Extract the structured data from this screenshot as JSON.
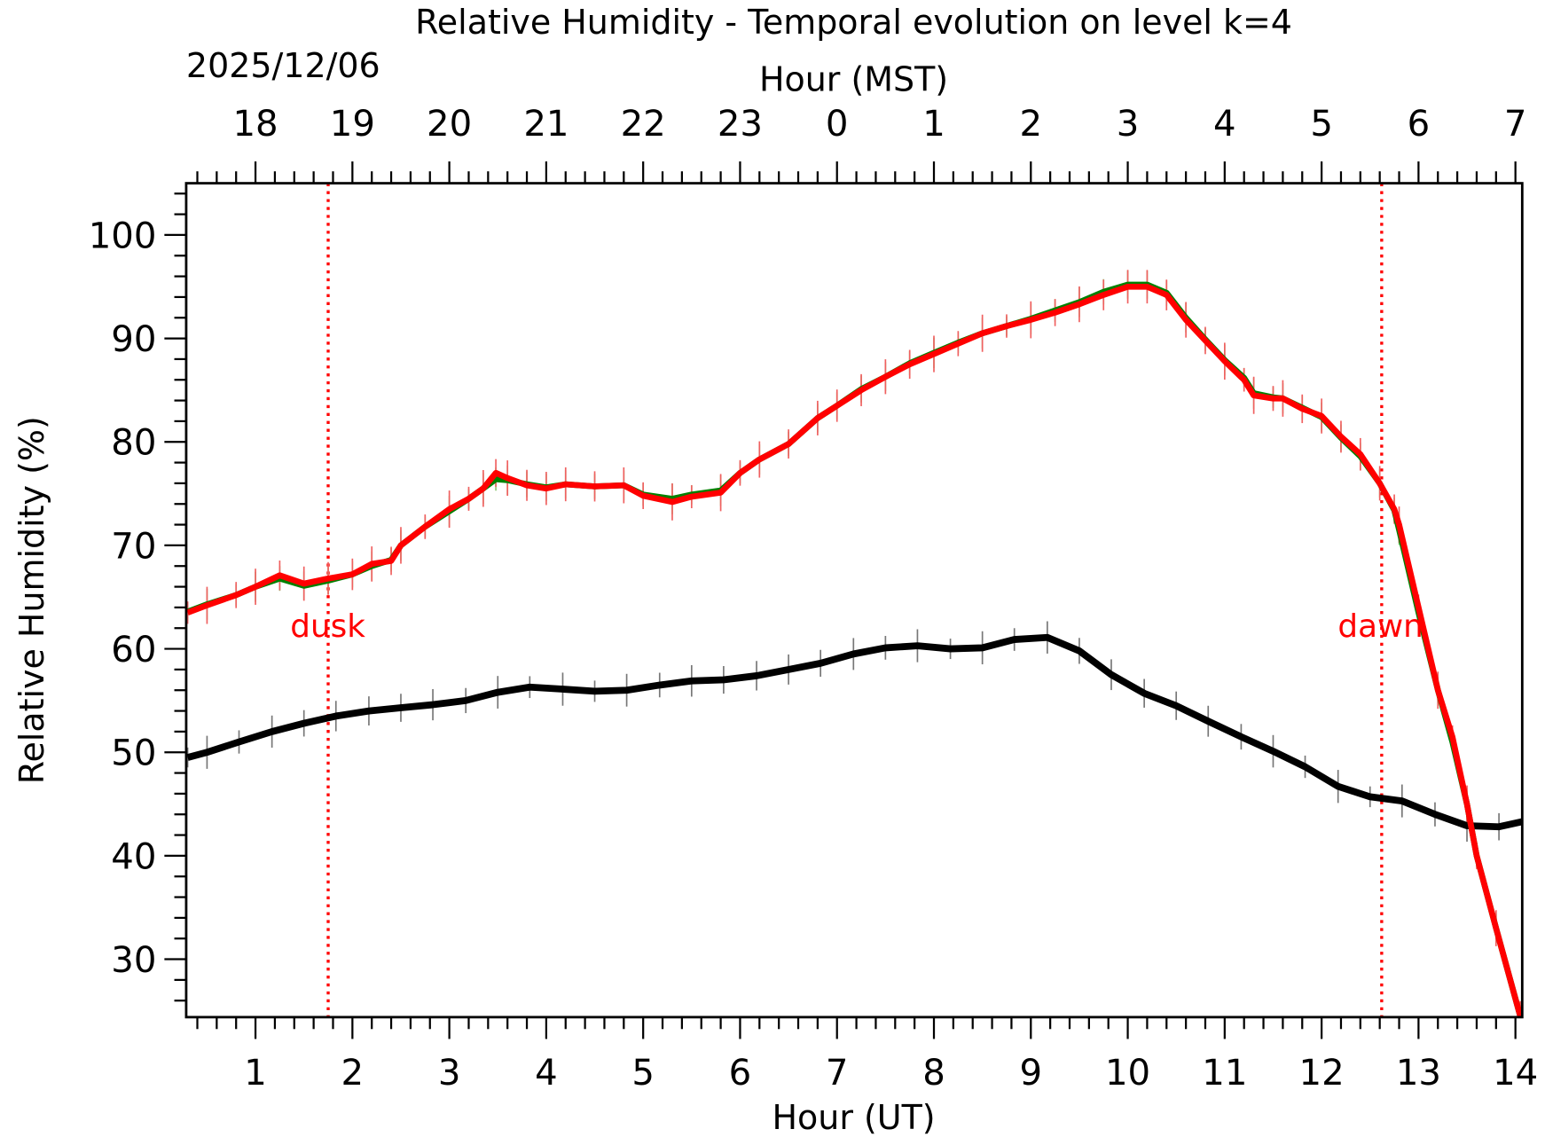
{
  "chart_data": {
    "type": "line",
    "title": "Relative Humidity - Temporal evolution on level k=4",
    "xlabel": "Hour (UT)",
    "xlabel_top": "Hour (MST)",
    "date_label": "2025/12/06",
    "ylabel": "Relative Humidity (%)",
    "xlim": [
      0.285,
      14.07
    ],
    "ylim": [
      24.4,
      105
    ],
    "x_ticks": [
      1,
      2,
      3,
      4,
      5,
      6,
      7,
      8,
      9,
      10,
      11,
      12,
      13,
      14
    ],
    "x_tick_labels": [
      "1",
      "2",
      "3",
      "4",
      "5",
      "6",
      "7",
      "8",
      "9",
      "10",
      "11",
      "12",
      "13",
      "14"
    ],
    "top_tick_labels": [
      "18",
      "19",
      "20",
      "21",
      "22",
      "23",
      "0",
      "1",
      "2",
      "3",
      "4",
      "5",
      "6",
      "7"
    ],
    "y_ticks": [
      30,
      40,
      50,
      60,
      70,
      80,
      90,
      100
    ],
    "y_tick_labels": [
      "30",
      "40",
      "50",
      "60",
      "70",
      "80",
      "90",
      "100"
    ],
    "annotations": [
      {
        "label": "dusk",
        "x": 1.75,
        "color": "#ff0000"
      },
      {
        "label": "dawn",
        "x": 12.62,
        "color": "#ff0000"
      }
    ],
    "series": [
      {
        "name": "reference",
        "color": "#000000",
        "err": 1.6,
        "x": [
          0.3,
          0.5,
          0.83,
          1.17,
          1.5,
          1.83,
          2.17,
          2.5,
          2.83,
          3.17,
          3.5,
          3.83,
          4.17,
          4.5,
          4.83,
          5.17,
          5.5,
          5.83,
          6.17,
          6.5,
          6.83,
          7.17,
          7.5,
          7.83,
          8.17,
          8.5,
          8.83,
          9.17,
          9.5,
          9.83,
          10.17,
          10.5,
          10.83,
          11.17,
          11.5,
          11.83,
          12.17,
          12.5,
          12.83,
          13.17,
          13.5,
          13.83,
          14.07
        ],
        "y": [
          49.5,
          50,
          51,
          52,
          52.8,
          53.5,
          54,
          54.3,
          54.6,
          55,
          55.8,
          56.3,
          56.1,
          55.9,
          56,
          56.5,
          56.9,
          57,
          57.4,
          58,
          58.6,
          59.5,
          60.1,
          60.3,
          60,
          60.1,
          60.9,
          61.1,
          59.8,
          57.5,
          55.7,
          54.5,
          53,
          51.5,
          50.1,
          48.6,
          46.7,
          45.7,
          45.3,
          44,
          42.9,
          42.8,
          43.3
        ]
      },
      {
        "name": "smoothed",
        "color": "#008000",
        "errcolor": "#90c878",
        "err": 1.5,
        "x": [
          0.3,
          0.5,
          0.8,
          1,
          1.25,
          1.5,
          1.75,
          2,
          2.2,
          2.4,
          2.5,
          2.75,
          3,
          3.2,
          3.35,
          3.48,
          3.6,
          3.8,
          4,
          4.2,
          4.5,
          4.8,
          5,
          5.3,
          5.5,
          5.8,
          6,
          6.2,
          6.5,
          6.8,
          7,
          7.25,
          7.5,
          7.75,
          8,
          8.25,
          8.5,
          8.75,
          9,
          9.25,
          9.5,
          9.75,
          10,
          10.2,
          10.4,
          10.6,
          10.8,
          11,
          11.2,
          11.3,
          11.5,
          11.6,
          11.8,
          12,
          12.2,
          12.4,
          12.6,
          12.75,
          12.8,
          13,
          13.2,
          13.35,
          13.5,
          13.6,
          13.8,
          14.05
        ],
        "y": [
          63.6,
          64.3,
          65.2,
          66,
          66.8,
          66.1,
          66.6,
          67.2,
          68,
          68.6,
          70,
          71.8,
          73.3,
          74.5,
          75.5,
          76.4,
          76.3,
          75.9,
          75.6,
          75.9,
          75.7,
          75.8,
          74.9,
          74.5,
          74.9,
          75.3,
          77,
          78.3,
          79.8,
          82.3,
          83.5,
          85.1,
          86.3,
          87.6,
          88.6,
          89.6,
          90.5,
          91.2,
          91.9,
          92.7,
          93.5,
          94.5,
          95.2,
          95.2,
          94.4,
          92,
          89.9,
          87.9,
          86.2,
          84.7,
          84.3,
          84.2,
          83.3,
          82.4,
          80.4,
          78.6,
          76,
          73.4,
          71.5,
          63.5,
          56,
          51,
          45,
          40,
          33,
          24.5
        ]
      },
      {
        "name": "measured",
        "color": "#ff0000",
        "err": 1.8,
        "x": [
          0.3,
          0.5,
          0.8,
          1,
          1.25,
          1.5,
          1.75,
          2,
          2.2,
          2.4,
          2.5,
          2.75,
          3,
          3.2,
          3.35,
          3.48,
          3.6,
          3.8,
          4,
          4.2,
          4.5,
          4.8,
          5,
          5.3,
          5.5,
          5.8,
          6,
          6.2,
          6.5,
          6.8,
          7,
          7.25,
          7.5,
          7.75,
          8,
          8.25,
          8.5,
          8.75,
          9,
          9.25,
          9.5,
          9.75,
          10,
          10.2,
          10.4,
          10.6,
          10.8,
          11,
          11.2,
          11.3,
          11.5,
          11.6,
          11.8,
          12,
          12.2,
          12.4,
          12.6,
          12.75,
          12.8,
          13,
          13.2,
          13.35,
          13.5,
          13.6,
          13.8,
          14.05
        ],
        "y": [
          63.5,
          64.2,
          65.2,
          66,
          67.1,
          66.3,
          66.8,
          67.2,
          68.2,
          68.5,
          70,
          71.8,
          73.5,
          74.5,
          75.5,
          77,
          76.5,
          75.8,
          75.5,
          75.9,
          75.7,
          75.8,
          74.8,
          74.2,
          74.7,
          75.1,
          77,
          78.3,
          79.8,
          82.3,
          83.5,
          85,
          86.3,
          87.5,
          88.5,
          89.5,
          90.5,
          91.2,
          91.8,
          92.5,
          93.3,
          94.2,
          95,
          95,
          94.2,
          91.8,
          89.8,
          87.8,
          86,
          84.5,
          84.2,
          84.2,
          83.2,
          82.5,
          80.5,
          78.8,
          76,
          73.5,
          72,
          64,
          56,
          51.5,
          45,
          40,
          33,
          24.5
        ]
      }
    ]
  }
}
